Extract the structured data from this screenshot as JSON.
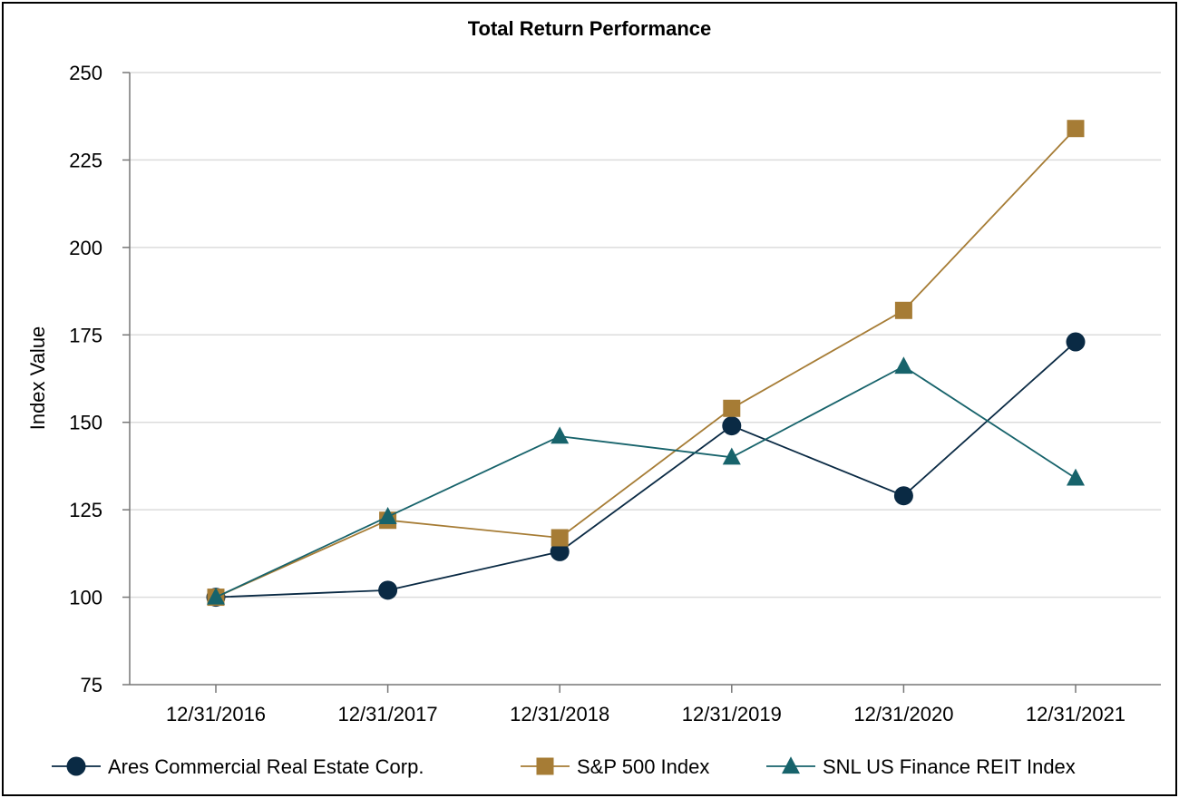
{
  "chart_data": {
    "type": "line",
    "title": "Total Return Performance",
    "xlabel": "",
    "ylabel": "Index Value",
    "categories": [
      "12/31/2016",
      "12/31/2017",
      "12/31/2018",
      "12/31/2019",
      "12/31/2020",
      "12/31/2021"
    ],
    "ylim": [
      75,
      250
    ],
    "yticks": [
      75,
      100,
      125,
      150,
      175,
      200,
      225,
      250
    ],
    "grid": "horizontal",
    "legend_position": "bottom",
    "series": [
      {
        "name": "Ares Commercial Real Estate Corp.",
        "values": [
          100,
          102,
          113,
          149,
          129,
          173
        ],
        "color": "#0a2a44",
        "marker": "circle"
      },
      {
        "name": "S&P 500 Index",
        "values": [
          100,
          122,
          117,
          154,
          182,
          234
        ],
        "color": "#a67c35",
        "marker": "square"
      },
      {
        "name": "SNL US Finance REIT Index",
        "values": [
          100,
          123,
          146,
          140,
          166,
          134
        ],
        "color": "#17636b",
        "marker": "triangle"
      }
    ]
  }
}
